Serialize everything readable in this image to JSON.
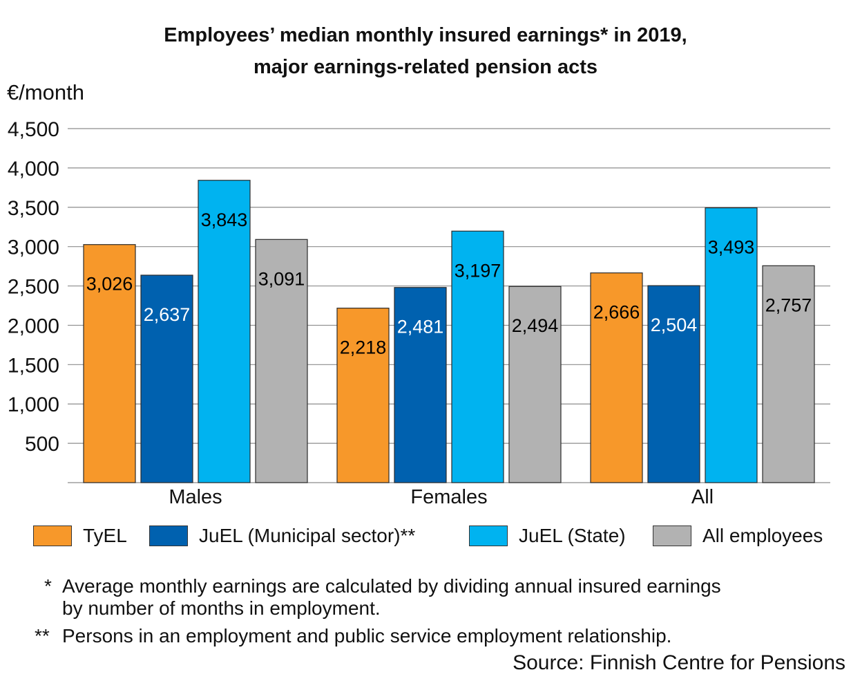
{
  "title_line1": "Employees’ median monthly insured earnings* in 2019,",
  "title_line2": "major earnings-related pension acts",
  "unit_label": "€/month",
  "notes": {
    "n1_marker": "*",
    "n1_line1": "Average monthly earnings are calculated by dividing annual insured earnings",
    "n1_line2": "by number of months in employment.",
    "n2_marker": "**",
    "n2_line1": "Persons in an employment and public service employment relationship."
  },
  "source": "Source: Finnish Centre for Pensions",
  "chart_data": {
    "type": "bar",
    "title": "Employees’ median monthly insured earnings* in 2019, major earnings-related pension acts",
    "ylabel": "€/month",
    "ylim": [
      0,
      4500
    ],
    "yticks": [
      500,
      1000,
      1500,
      2000,
      2500,
      3000,
      3500,
      4000,
      4500
    ],
    "ytick_labels": [
      "500",
      "1,000",
      "1,500",
      "2,000",
      "2,500",
      "3,000",
      "3,500",
      "4,000",
      "4,500"
    ],
    "grid": true,
    "legend_position": "bottom",
    "categories": [
      "Males",
      "Females",
      "All"
    ],
    "series": [
      {
        "name": "TyEL",
        "color": "#F7982A",
        "label_color": "#000000",
        "values": [
          3026,
          2218,
          2666
        ],
        "labels": [
          "3,026",
          "2,218",
          "2,666"
        ]
      },
      {
        "name": "JuEL (Municipal sector)**",
        "color": "#0061AF",
        "label_color": "#FFFFFF",
        "values": [
          2637,
          2481,
          2504
        ],
        "labels": [
          "2,637",
          "2,481",
          "2,504"
        ]
      },
      {
        "name": "JuEL (State)",
        "color": "#00B3F0",
        "label_color": "#000000",
        "values": [
          3843,
          3197,
          3493
        ],
        "labels": [
          "3,843",
          "3,197",
          "3,493"
        ]
      },
      {
        "name": "All employees",
        "color": "#B2B2B2",
        "label_color": "#000000",
        "values": [
          3091,
          2494,
          2757
        ],
        "labels": [
          "3,091",
          "2,494",
          "2,757"
        ]
      }
    ]
  }
}
